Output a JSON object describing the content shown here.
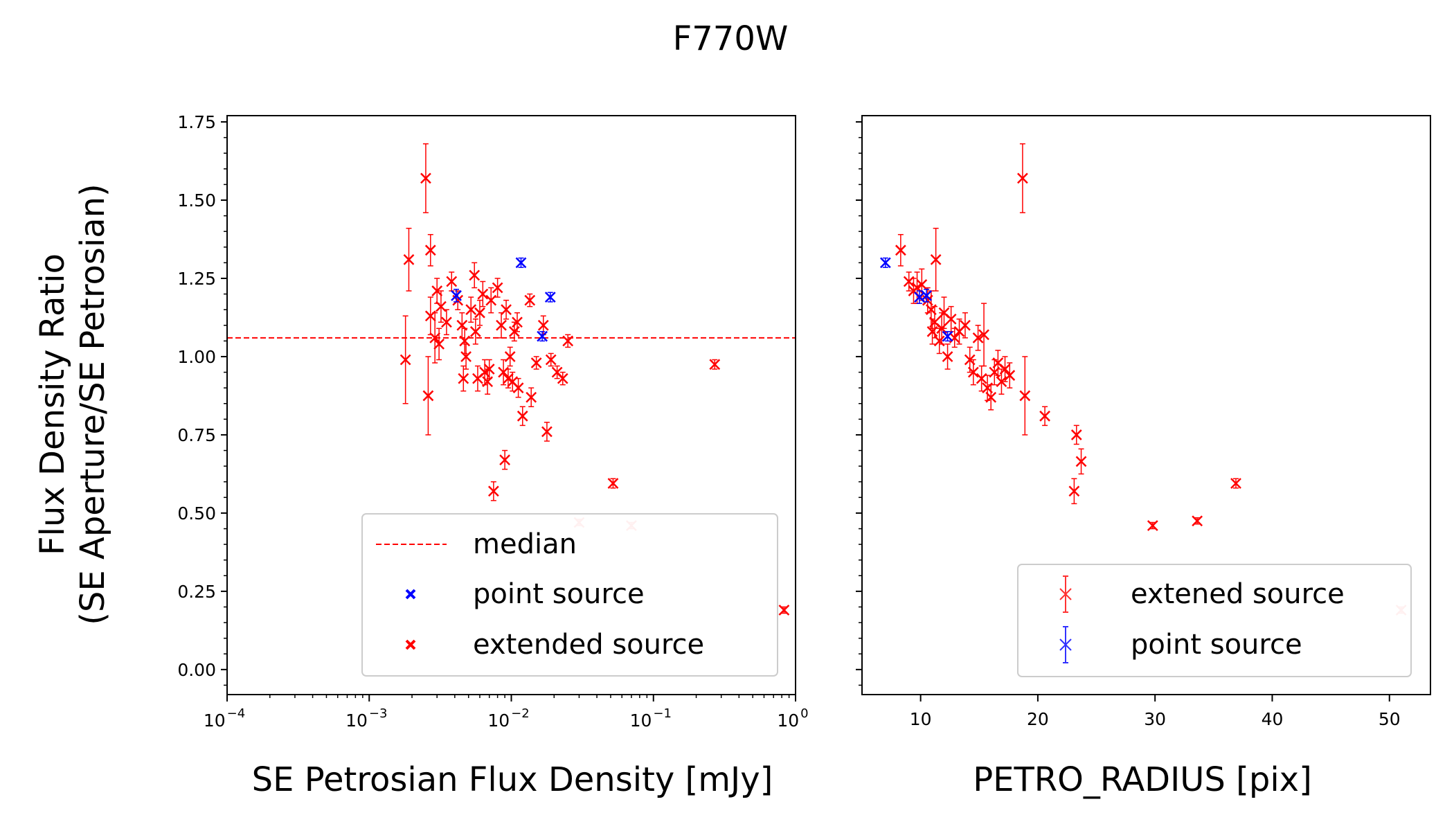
{
  "title": "F770W",
  "colors": {
    "extended": "#ff0000",
    "point": "#0000ff",
    "median": "#ff0000",
    "frame": "#000000"
  },
  "chart_data": [
    {
      "type": "scatter",
      "xscale": "log",
      "xlabel": "SE Petrosian Flux Density [mJy]",
      "ylabel_line1": "Flux Density Ratio",
      "ylabel_line2": "(SE Aperture/SE Petrosian)",
      "xlim": [
        0.0001,
        1
      ],
      "ylim": [
        -0.08,
        1.77
      ],
      "xticks": [
        {
          "value": 0.0001,
          "label": "10",
          "exp": "−4"
        },
        {
          "value": 0.001,
          "label": "10",
          "exp": "−3"
        },
        {
          "value": 0.01,
          "label": "10",
          "exp": "−2"
        },
        {
          "value": 0.1,
          "label": "10",
          "exp": "−1"
        },
        {
          "value": 1,
          "label": "10",
          "exp": "0"
        }
      ],
      "yticks": [
        {
          "value": 0.0,
          "label": "0.00"
        },
        {
          "value": 0.25,
          "label": "0.25"
        },
        {
          "value": 0.5,
          "label": "0.50"
        },
        {
          "value": 0.75,
          "label": "0.75"
        },
        {
          "value": 1.0,
          "label": "1.00"
        },
        {
          "value": 1.25,
          "label": "1.25"
        },
        {
          "value": 1.5,
          "label": "1.50"
        },
        {
          "value": 1.75,
          "label": "1.75"
        }
      ],
      "median": 1.06,
      "legend": {
        "location": "lower-right",
        "median_label": "median",
        "point_label": "point source",
        "extended_label": "extended source"
      },
      "series": [
        {
          "name": "extended source",
          "color": "#ff0000",
          "points": [
            [
              0.0025,
              1.57,
              0.11
            ],
            [
              0.0019,
              1.31,
              0.1
            ],
            [
              0.0027,
              1.34,
              0.05
            ],
            [
              0.0018,
              0.99,
              0.14
            ],
            [
              0.0026,
              0.875,
              0.125
            ],
            [
              0.0027,
              1.13,
              0.06
            ],
            [
              0.0029,
              1.06,
              0.08
            ],
            [
              0.0031,
              1.04,
              0.05
            ],
            [
              0.003,
              1.21,
              0.04
            ],
            [
              0.0032,
              1.16,
              0.05
            ],
            [
              0.0035,
              1.11,
              0.04
            ],
            [
              0.0038,
              1.24,
              0.03
            ],
            [
              0.0042,
              1.18,
              0.03
            ],
            [
              0.0045,
              1.1,
              0.04
            ],
            [
              0.0047,
              1.05,
              0.04
            ],
            [
              0.0046,
              0.93,
              0.04
            ],
            [
              0.0048,
              1.0,
              0.04
            ],
            [
              0.0052,
              1.15,
              0.04
            ],
            [
              0.0055,
              1.26,
              0.04
            ],
            [
              0.0058,
              0.93,
              0.04
            ],
            [
              0.0056,
              1.08,
              0.04
            ],
            [
              0.006,
              1.14,
              0.04
            ],
            [
              0.0063,
              1.2,
              0.04
            ],
            [
              0.0065,
              0.95,
              0.04
            ],
            [
              0.0068,
              0.92,
              0.04
            ],
            [
              0.007,
              0.96,
              0.03
            ],
            [
              0.0072,
              1.18,
              0.04
            ],
            [
              0.0075,
              0.57,
              0.03
            ],
            [
              0.008,
              1.22,
              0.03
            ],
            [
              0.0085,
              1.1,
              0.04
            ],
            [
              0.0088,
              0.95,
              0.04
            ],
            [
              0.009,
              0.67,
              0.03
            ],
            [
              0.0092,
              1.15,
              0.03
            ],
            [
              0.0095,
              0.93,
              0.03
            ],
            [
              0.0098,
              1.0,
              0.03
            ],
            [
              0.0102,
              0.92,
              0.03
            ],
            [
              0.0105,
              1.08,
              0.03
            ],
            [
              0.011,
              1.11,
              0.03
            ],
            [
              0.0112,
              0.9,
              0.03
            ],
            [
              0.012,
              0.81,
              0.03
            ],
            [
              0.0135,
              1.18,
              0.02
            ],
            [
              0.0138,
              0.87,
              0.03
            ],
            [
              0.015,
              0.98,
              0.02
            ],
            [
              0.0168,
              1.1,
              0.03
            ],
            [
              0.0178,
              0.76,
              0.03
            ],
            [
              0.019,
              0.99,
              0.02
            ],
            [
              0.021,
              0.95,
              0.02
            ],
            [
              0.023,
              0.93,
              0.02
            ],
            [
              0.025,
              1.05,
              0.02
            ],
            [
              0.052,
              0.595,
              0.015
            ],
            [
              0.27,
              0.975,
              0.015
            ],
            [
              0.83,
              0.19,
              0.01
            ]
          ]
        },
        {
          "name": "extended source (faint)",
          "color": "#ffb6b6",
          "points": [
            [
              0.03,
              0.47,
              0.01
            ],
            [
              0.07,
              0.46,
              0.01
            ]
          ]
        },
        {
          "name": "point source",
          "color": "#0000ff",
          "points": [
            [
              0.0041,
              1.195,
              0.02
            ],
            [
              0.0117,
              1.3,
              0.015
            ],
            [
              0.0165,
              1.065,
              0.015
            ],
            [
              0.0188,
              1.19,
              0.015
            ]
          ]
        }
      ]
    },
    {
      "type": "scatter",
      "xscale": "linear",
      "xlabel": "PETRO_RADIUS [pix]",
      "xlim": [
        5,
        53.5
      ],
      "ylim": [
        -0.08,
        1.77
      ],
      "xticks": [
        {
          "value": 10,
          "label": "10"
        },
        {
          "value": 20,
          "label": "20"
        },
        {
          "value": 30,
          "label": "30"
        },
        {
          "value": 40,
          "label": "40"
        },
        {
          "value": 50,
          "label": "50"
        }
      ],
      "legend": {
        "location": "lower-right",
        "extended_label": "extened source",
        "point_label": "point source"
      },
      "series": [
        {
          "name": "extened source",
          "color": "#ff0000",
          "points": [
            [
              18.7,
              1.57,
              0.11
            ],
            [
              8.3,
              1.34,
              0.05
            ],
            [
              11.3,
              1.31,
              0.1
            ],
            [
              9.0,
              1.24,
              0.03
            ],
            [
              9.4,
              1.21,
              0.04
            ],
            [
              9.7,
              1.22,
              0.05
            ],
            [
              10.1,
              1.23,
              0.05
            ],
            [
              10.6,
              1.18,
              0.04
            ],
            [
              10.9,
              1.15,
              0.06
            ],
            [
              11.0,
              1.08,
              0.04
            ],
            [
              11.2,
              1.11,
              0.05
            ],
            [
              11.6,
              1.05,
              0.04
            ],
            [
              11.8,
              1.09,
              0.05
            ],
            [
              12.0,
              1.14,
              0.05
            ],
            [
              12.3,
              1.0,
              0.04
            ],
            [
              12.6,
              1.12,
              0.04
            ],
            [
              12.9,
              1.06,
              0.03
            ],
            [
              13.3,
              1.08,
              0.04
            ],
            [
              13.8,
              1.1,
              0.04
            ],
            [
              14.2,
              0.99,
              0.04
            ],
            [
              14.5,
              0.95,
              0.04
            ],
            [
              14.9,
              1.06,
              0.04
            ],
            [
              15.2,
              0.93,
              0.04
            ],
            [
              15.4,
              1.07,
              0.1
            ],
            [
              15.7,
              0.9,
              0.04
            ],
            [
              16.0,
              0.87,
              0.04
            ],
            [
              16.3,
              0.95,
              0.04
            ],
            [
              16.6,
              0.98,
              0.04
            ],
            [
              16.9,
              0.92,
              0.04
            ],
            [
              17.2,
              0.96,
              0.04
            ],
            [
              17.6,
              0.94,
              0.04
            ],
            [
              18.9,
              0.875,
              0.125
            ],
            [
              20.6,
              0.81,
              0.03
            ],
            [
              23.3,
              0.75,
              0.03
            ],
            [
              23.7,
              0.665,
              0.04
            ],
            [
              23.1,
              0.57,
              0.04
            ],
            [
              29.8,
              0.46,
              0.01
            ],
            [
              33.6,
              0.475,
              0.01
            ],
            [
              36.9,
              0.595,
              0.015
            ]
          ]
        },
        {
          "name": "extened source (faint)",
          "color": "#ffb6b6",
          "points": [
            [
              51.0,
              0.19,
              0.01
            ]
          ]
        },
        {
          "name": "point source",
          "color": "#0000ff",
          "points": [
            [
              7.0,
              1.3,
              0.015
            ],
            [
              9.9,
              1.19,
              0.02
            ],
            [
              10.5,
              1.195,
              0.02
            ],
            [
              12.3,
              1.065,
              0.015
            ]
          ]
        }
      ]
    }
  ]
}
